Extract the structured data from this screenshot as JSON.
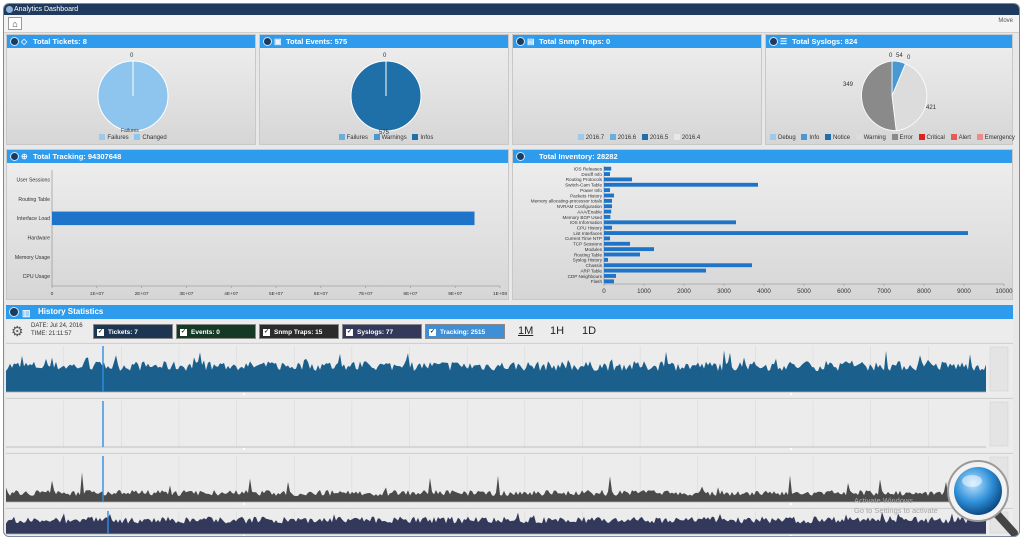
{
  "window": {
    "title": "Analytics Dashboard",
    "move_label": "Move"
  },
  "panels": {
    "tickets": {
      "title": "Total Tickets: 8",
      "top_label": "0",
      "bottom_label": "Failures",
      "legend": [
        {
          "label": "Failures",
          "color": "#9cc9ee"
        },
        {
          "label": "Changed",
          "color": "#8ec5ef"
        }
      ]
    },
    "events": {
      "title": "Total Events: 575",
      "top_label": "0",
      "bottom_label": "575",
      "legend": [
        {
          "label": "Failures",
          "color": "#6aaede"
        },
        {
          "label": "Warnings",
          "color": "#4a98d2"
        },
        {
          "label": "Infos",
          "color": "#1f6fa8"
        }
      ]
    },
    "snmp": {
      "title": "Total Snmp Traps: 0",
      "legend": [
        {
          "label": "2016.7",
          "color": "#9cc9ee"
        },
        {
          "label": "2016.6",
          "color": "#6aaede"
        },
        {
          "label": "2016.5",
          "color": "#1f6fa8"
        },
        {
          "label": "2016.4",
          "color": "#e8e8e8"
        }
      ]
    },
    "syslogs": {
      "title": "Total Syslogs: 824",
      "labels": {
        "a": "0",
        "b": "54",
        "c": "0",
        "d": "349",
        "e": "421"
      },
      "legend": [
        {
          "label": "Debug",
          "color": "#9cc9ee"
        },
        {
          "label": "Info",
          "color": "#4a98d2"
        },
        {
          "label": "Notice",
          "color": "#1f6fa8"
        },
        {
          "label": "Warning",
          "color": "#dcdcdc"
        },
        {
          "label": "Error",
          "color": "#8a8a8a"
        },
        {
          "label": "Critical",
          "color": "#e02020"
        },
        {
          "label": "Alert",
          "color": "#e85a5a"
        },
        {
          "label": "Emergency",
          "color": "#f08a8a"
        }
      ]
    },
    "tracking": {
      "title": "Total Tracking: 94307648"
    },
    "inventory": {
      "title": "Total Inventory: 28282"
    }
  },
  "chart_data": [
    {
      "type": "pie",
      "title": "Total Tickets: 8",
      "slices": [
        {
          "label": "Failures",
          "value": 0
        },
        {
          "label": "Changed",
          "value": 8
        }
      ]
    },
    {
      "type": "pie",
      "title": "Total Events: 575",
      "slices": [
        {
          "label": "Failures",
          "value": 0
        },
        {
          "label": "Warnings",
          "value": 0
        },
        {
          "label": "Infos",
          "value": 575
        }
      ]
    },
    {
      "type": "pie",
      "title": "Total Syslogs: 824",
      "slices": [
        {
          "label": "Debug",
          "value": 0
        },
        {
          "label": "Info",
          "value": 54
        },
        {
          "label": "Notice",
          "value": 0
        },
        {
          "label": "Warning",
          "value": 421
        },
        {
          "label": "Error",
          "value": 349
        }
      ]
    },
    {
      "type": "bar",
      "orientation": "horizontal",
      "title": "Total Tracking: 94307648",
      "categories": [
        "User Sessions",
        "Routing Table",
        "Interface Load",
        "Hardware",
        "Memory Usage",
        "CPU Usage"
      ],
      "values": [
        0,
        0,
        94307648,
        0,
        0,
        0
      ],
      "xticks": [
        "0",
        "1E+07",
        "2E+07",
        "3E+07",
        "4E+07",
        "5E+07",
        "6E+07",
        "7E+07",
        "8E+07",
        "9E+07",
        "1E+08"
      ],
      "xlim": [
        0,
        100000000
      ]
    },
    {
      "type": "bar",
      "orientation": "horizontal",
      "title": "Total Inventory: 28282",
      "categories": [
        "IOS Releases",
        "Dnsiff Info",
        "Routing Protocols",
        "Switch-Cam Table",
        "Power Info",
        "Packets History",
        "Memory allocating-processor totals",
        "NVRAM Configuration",
        "AAA/Enable",
        "Memory BGP Used",
        "IOS Information",
        "CPU History",
        "List Interfaces",
        "Current Time NTP",
        "TCP Sessions",
        "Modules",
        "Routing Table",
        "Syslog History",
        "Chassis",
        "ARP Table",
        "CDP Neighbours",
        "Flash"
      ],
      "values": [
        180,
        150,
        700,
        3850,
        150,
        250,
        200,
        200,
        180,
        160,
        3300,
        200,
        9100,
        150,
        650,
        1250,
        900,
        100,
        3700,
        2550,
        300,
        250
      ],
      "xticks": [
        "0",
        "1000",
        "2000",
        "3000",
        "4000",
        "5000",
        "6000",
        "7000",
        "8000",
        "9000",
        "10000"
      ],
      "xlim": [
        0,
        10000
      ]
    }
  ],
  "history": {
    "title": "History Statistics",
    "date": "DATE: Jul 24, 2016",
    "time": "TIME: 21:11:57",
    "chips": [
      {
        "label": "Tickets: 7",
        "color": "#1c3553"
      },
      {
        "label": "Events: 0",
        "color": "#143a26"
      },
      {
        "label": "Snmp Traps: 15",
        "color": "#2b2b2b"
      },
      {
        "label": "Syslogs: 77",
        "color": "#33395a"
      },
      {
        "label": "Tracking: 2515",
        "color": "#3f8fd6"
      }
    ],
    "ranges": [
      {
        "label": "1M"
      },
      {
        "label": "1H"
      },
      {
        "label": "1D"
      }
    ]
  },
  "watermark": {
    "line1": "Activate Windows",
    "line2": "Go to Settings to activate"
  }
}
